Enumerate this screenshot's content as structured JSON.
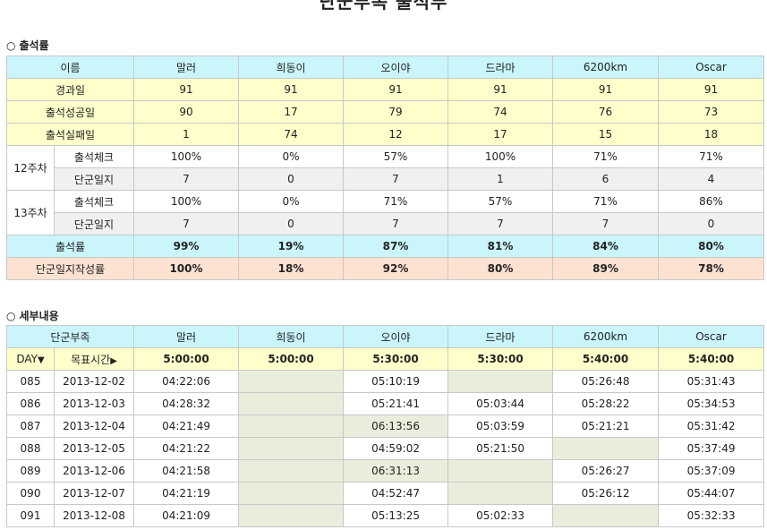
{
  "title": "단군부족 출석부",
  "attendance": {
    "section_label": "출석률",
    "header": [
      "이름",
      "말러",
      "희동이",
      "오이야",
      "드라마",
      "6200km",
      "Oscar"
    ],
    "elapsed": {
      "label": "경과일",
      "values": [
        "91",
        "91",
        "91",
        "91",
        "91",
        "91"
      ]
    },
    "success": {
      "label": "출석성공일",
      "values": [
        "90",
        "17",
        "79",
        "74",
        "76",
        "73"
      ]
    },
    "fail": {
      "label": "출석실패일",
      "values": [
        "1",
        "74",
        "12",
        "17",
        "15",
        "18"
      ]
    },
    "weeks": [
      {
        "label": "12주차",
        "check": {
          "label": "출석체크",
          "values": [
            "100%",
            "0%",
            "57%",
            "100%",
            "71%",
            "71%"
          ]
        },
        "diary": {
          "label": "단군일지",
          "values": [
            "7",
            "0",
            "7",
            "1",
            "6",
            "4"
          ]
        }
      },
      {
        "label": "13주차",
        "check": {
          "label": "출석체크",
          "values": [
            "100%",
            "0%",
            "71%",
            "57%",
            "71%",
            "86%"
          ]
        },
        "diary": {
          "label": "단군일지",
          "values": [
            "7",
            "0",
            "7",
            "7",
            "7",
            "0"
          ]
        }
      }
    ],
    "rate": {
      "label": "출석률",
      "values": [
        "99%",
        "19%",
        "87%",
        "81%",
        "84%",
        "80%"
      ]
    },
    "diary_rate": {
      "label": "단군일지작성률",
      "values": [
        "100%",
        "18%",
        "92%",
        "80%",
        "89%",
        "78%"
      ]
    }
  },
  "details": {
    "section_label": "세부내용",
    "header": [
      "단군부족",
      "말러",
      "희동이",
      "오이야",
      "드라마",
      "6200km",
      "Oscar"
    ],
    "day_label": "DAY",
    "target_label": "목표시간",
    "targets": [
      "5:00:00",
      "5:00:00",
      "5:30:00",
      "5:30:00",
      "5:40:00",
      "5:40:00"
    ],
    "rows": [
      {
        "day": "085",
        "date": "2013-12-02",
        "times": [
          "04:22:06",
          "",
          "05:10:19",
          "",
          "05:26:48",
          "05:31:43"
        ]
      },
      {
        "day": "086",
        "date": "2013-12-03",
        "times": [
          "04:28:32",
          "",
          "05:21:41",
          "05:03:44",
          "05:28:22",
          "05:34:53"
        ]
      },
      {
        "day": "087",
        "date": "2013-12-04",
        "times": [
          "04:21:49",
          "",
          "06:13:56",
          "05:03:59",
          "05:21:21",
          "05:31:42"
        ]
      },
      {
        "day": "088",
        "date": "2013-12-05",
        "times": [
          "04:21:22",
          "",
          "04:59:02",
          "05:21:50",
          "",
          "05:37:49"
        ]
      },
      {
        "day": "089",
        "date": "2013-12-06",
        "times": [
          "04:21:58",
          "",
          "06:31:13",
          "",
          "05:26:27",
          "05:37:09"
        ]
      },
      {
        "day": "090",
        "date": "2013-12-07",
        "times": [
          "04:21:19",
          "",
          "04:52:47",
          "",
          "05:26:12",
          "05:44:07"
        ]
      },
      {
        "day": "091",
        "date": "2013-12-08",
        "times": [
          "04:21:09",
          "",
          "05:13:25",
          "05:02:33",
          "",
          "05:32:33"
        ]
      }
    ],
    "late_cells": [
      [
        2,
        1
      ],
      [
        4,
        1
      ],
      [
        0,
        1
      ],
      [
        0,
        3
      ],
      [
        1,
        1
      ],
      [
        2,
        3
      ],
      [
        3,
        1
      ],
      [
        3,
        4
      ],
      [
        4,
        1
      ],
      [
        4,
        3
      ],
      [
        5,
        1
      ],
      [
        5,
        3
      ],
      [
        6,
        1
      ],
      [
        6,
        4
      ]
    ]
  },
  "colors": {
    "header": "#c9f5fb",
    "yellow": "#ffffcc",
    "pink": "#fde2d2",
    "blank": "#e9eedc",
    "gray": "#f0f0f0"
  }
}
